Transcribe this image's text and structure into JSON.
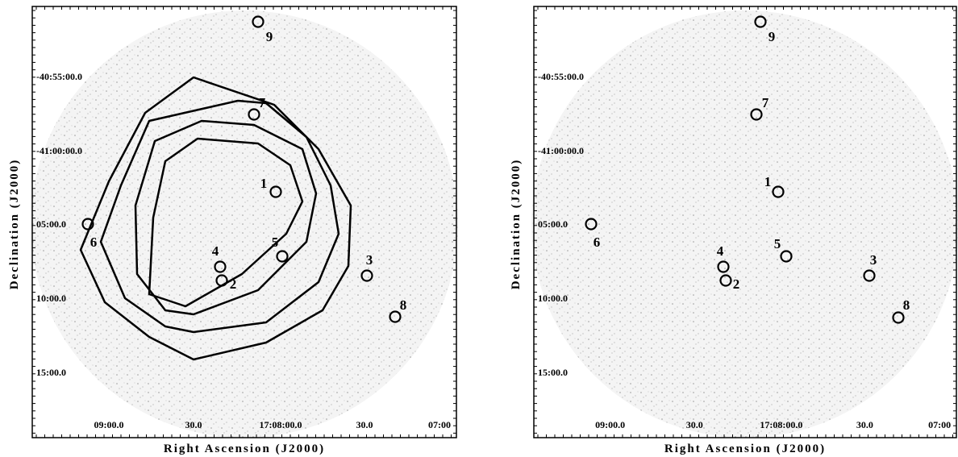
{
  "panels": [
    {
      "x_label": "Right Ascension (J2000)",
      "y_label": "Declination (J2000)",
      "x_ticks": [
        "09:00.0",
        "30.0",
        "17:08:00.0",
        "30.0",
        "07:00"
      ],
      "y_ticks": [
        "-40:55:00.0",
        "-41:00:00.0",
        "05:00.0",
        "10:00.0",
        "15:00.0"
      ],
      "sources": [
        "1",
        "2",
        "3",
        "4",
        "5",
        "6",
        "7",
        "8",
        "9"
      ]
    },
    {
      "x_label": "Right Ascension (J2000)",
      "y_label": "Declination (J2000)",
      "x_ticks": [
        "09:00.0",
        "30.0",
        "17:08:00.0",
        "30.0",
        "07:00"
      ],
      "y_ticks": [
        "-40:55:00.0",
        "-41:00:00.0",
        "05:00.0",
        "10:00.0",
        "15:00.0"
      ],
      "sources": [
        "1",
        "2",
        "3",
        "4",
        "5",
        "6",
        "7",
        "8",
        "9"
      ]
    }
  ]
}
